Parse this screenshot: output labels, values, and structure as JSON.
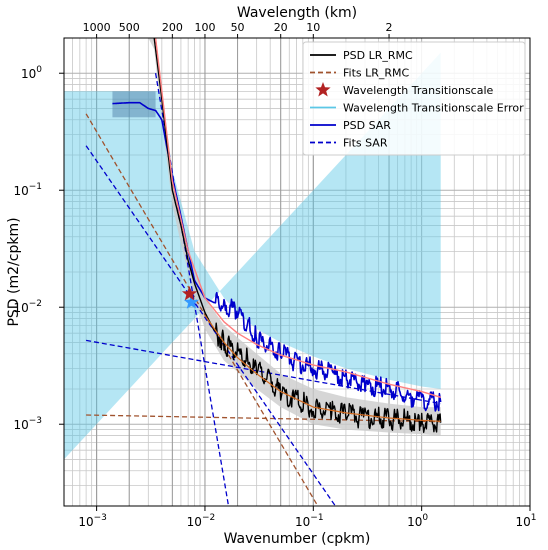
{
  "chart_data": {
    "type": "line",
    "x_scale": "log",
    "y_scale": "log",
    "xlim": [
      0.0005,
      10
    ],
    "ylim": [
      0.0002,
      2
    ],
    "xlabel": "Wavenumber (cpkm)",
    "ylabel": "PSD (m2/cpkm)",
    "top_xlabel": "Wavelength (km)",
    "grid": true,
    "legend_position": "top-right",
    "x_ticks": [
      {
        "value": 0.001,
        "label": "10",
        "exp": "−3"
      },
      {
        "value": 0.01,
        "label": "10",
        "exp": "−2"
      },
      {
        "value": 0.1,
        "label": "10",
        "exp": "−1"
      },
      {
        "value": 1,
        "label": "10",
        "exp": "0"
      },
      {
        "value": 10,
        "label": "10",
        "exp": "1"
      }
    ],
    "y_ticks": [
      {
        "value": 0.001,
        "label": "10",
        "exp": "−3"
      },
      {
        "value": 0.01,
        "label": "10",
        "exp": "−2"
      },
      {
        "value": 0.1,
        "label": "10",
        "exp": "−1"
      },
      {
        "value": 1,
        "label": "10",
        "exp": "0"
      }
    ],
    "top_ticks": [
      {
        "wavelength": 1000,
        "label": "1000"
      },
      {
        "wavelength": 500,
        "label": "500"
      },
      {
        "wavelength": 200,
        "label": "200"
      },
      {
        "wavelength": 100,
        "label": "100"
      },
      {
        "wavelength": 50,
        "label": "50"
      },
      {
        "wavelength": 20,
        "label": "20"
      },
      {
        "wavelength": 10,
        "label": "10"
      },
      {
        "wavelength": 2,
        "label": "2"
      }
    ],
    "series": [
      {
        "name": "PSD LR_RMC",
        "color": "#000000",
        "style": "solid",
        "x": [
          0.0034,
          0.004,
          0.005,
          0.006,
          0.007,
          0.008,
          0.01,
          0.012,
          0.015,
          0.02,
          0.025,
          0.03,
          0.04,
          0.05,
          0.07,
          0.1,
          0.15,
          0.2,
          0.3,
          0.5,
          0.7,
          1.0,
          1.5
        ],
        "y": [
          2.0,
          0.6,
          0.1,
          0.05,
          0.025,
          0.016,
          0.009,
          0.0065,
          0.005,
          0.004,
          0.0035,
          0.0028,
          0.0024,
          0.0019,
          0.0016,
          0.0014,
          0.00125,
          0.0012,
          0.00115,
          0.0011,
          0.00108,
          0.00105,
          0.00103
        ]
      },
      {
        "name": "Fits LR_RMC",
        "color": "#a0522d",
        "style": "dashed",
        "lines": [
          {
            "x": [
              0.0008,
              0.11
            ],
            "y": [
              0.45,
              0.0002
            ]
          },
          {
            "x": [
              0.0008,
              1.5
            ],
            "y": [
              0.0012,
              0.00105
            ]
          }
        ]
      },
      {
        "name": "Wavelength Transitionscale",
        "color": "#b22222",
        "marker": "star",
        "x": [
          0.0072
        ],
        "y": [
          0.013
        ]
      },
      {
        "name": "Wavelength Transitionscale Error",
        "color": "#5bc8e6",
        "style": "solid",
        "band_low": [
          0.0005,
          0.004,
          0.005,
          0.008,
          0.015,
          0.02,
          0.03,
          0.05,
          0.1,
          0.2,
          0.5,
          1.0,
          1.5
        ],
        "band_x": [
          0.0005,
          0.004,
          0.005,
          0.008,
          0.015,
          0.02,
          0.03,
          0.05,
          0.1,
          0.2,
          0.5,
          1.0,
          1.5
        ],
        "band_high": [
          0.7,
          0.7,
          0.15,
          0.03,
          0.012,
          0.009,
          0.0065,
          0.005,
          0.0038,
          0.003,
          0.0024,
          0.0021,
          0.002
        ]
      },
      {
        "name": "PSD SAR",
        "color": "#0000cc",
        "style": "solid",
        "x": [
          0.0014,
          0.002,
          0.0025,
          0.003,
          0.0035,
          0.004,
          0.005,
          0.006,
          0.007,
          0.008,
          0.01,
          0.012,
          0.015,
          0.02,
          0.025,
          0.03,
          0.04,
          0.05,
          0.07,
          0.1,
          0.15,
          0.2,
          0.3,
          0.5,
          0.7,
          1.0,
          1.5
        ],
        "y": [
          0.55,
          0.56,
          0.56,
          0.5,
          0.48,
          0.4,
          0.13,
          0.06,
          0.03,
          0.017,
          0.012,
          0.011,
          0.0105,
          0.0095,
          0.007,
          0.0055,
          0.0045,
          0.004,
          0.0034,
          0.003,
          0.0027,
          0.0025,
          0.0022,
          0.002,
          0.0018,
          0.0016,
          0.00155
        ]
      },
      {
        "name": "Fits SAR",
        "color": "#0000cc",
        "style": "dashed",
        "lines": [
          {
            "x": [
              0.0008,
              0.16
            ],
            "y": [
              0.24,
              0.0002
            ]
          },
          {
            "x": [
              0.0008,
              1.5
            ],
            "y": [
              0.0052,
              0.0015
            ]
          },
          {
            "x": [
              0.0035,
              0.0165
            ],
            "y": [
              1.0,
              0.0002
            ]
          }
        ]
      }
    ],
    "extra_curves": [
      {
        "role": "LR_RMC band",
        "color": "#cccccc",
        "x": [
          0.003,
          0.0034,
          0.004,
          0.005,
          0.006,
          0.008,
          0.01,
          0.015,
          0.02,
          0.03,
          0.05,
          0.1,
          0.2,
          0.5,
          1.0,
          1.5
        ],
        "low": [
          2.0,
          1.6,
          0.4,
          0.075,
          0.035,
          0.012,
          0.0065,
          0.0035,
          0.0028,
          0.002,
          0.0014,
          0.001,
          0.0009,
          0.00085,
          0.00082,
          0.0008
        ],
        "high": [
          2.0,
          2.0,
          0.8,
          0.13,
          0.065,
          0.02,
          0.012,
          0.007,
          0.0055,
          0.004,
          0.0027,
          0.002,
          0.0017,
          0.0015,
          0.0014,
          0.0014
        ]
      },
      {
        "role": "fit overlay",
        "color": "#ff7f7f",
        "x": [
          0.0035,
          0.005,
          0.007,
          0.01,
          0.015,
          0.02,
          0.03,
          0.05,
          0.1,
          0.2,
          0.5,
          1.0,
          1.5
        ],
        "y": [
          2.0,
          0.12,
          0.03,
          0.012,
          0.0075,
          0.006,
          0.0048,
          0.0039,
          0.0032,
          0.0028,
          0.0022,
          0.0019,
          0.0017
        ]
      },
      {
        "role": "fit overlay LR",
        "color": "#d2691e",
        "x": [
          0.01,
          0.015,
          0.02,
          0.03,
          0.05,
          0.1,
          0.2,
          0.5,
          1.0,
          1.5
        ],
        "y": [
          0.0085,
          0.005,
          0.0037,
          0.0027,
          0.0019,
          0.0014,
          0.00125,
          0.00113,
          0.00108,
          0.00106
        ]
      }
    ],
    "sar_band": {
      "color": "#5a8ab0",
      "x": [
        0.0014,
        0.0035
      ],
      "low": 0.42,
      "high": 0.7
    },
    "marker_sar": {
      "color": "#3399ff",
      "x": 0.0075,
      "y": 0.011
    }
  },
  "legend": {
    "items": [
      {
        "label": "PSD LR_RMC",
        "color": "#000000",
        "kind": "line"
      },
      {
        "label": "Fits LR_RMC",
        "color": "#a0522d",
        "kind": "dashed"
      },
      {
        "label": "Wavelength Transitionscale",
        "color": "#b22222",
        "kind": "star"
      },
      {
        "label": "Wavelength Transitionscale Error",
        "color": "#5bc8e6",
        "kind": "line"
      },
      {
        "label": "PSD SAR",
        "color": "#0000cc",
        "kind": "line"
      },
      {
        "label": "Fits SAR",
        "color": "#0000cc",
        "kind": "dashed"
      }
    ]
  }
}
